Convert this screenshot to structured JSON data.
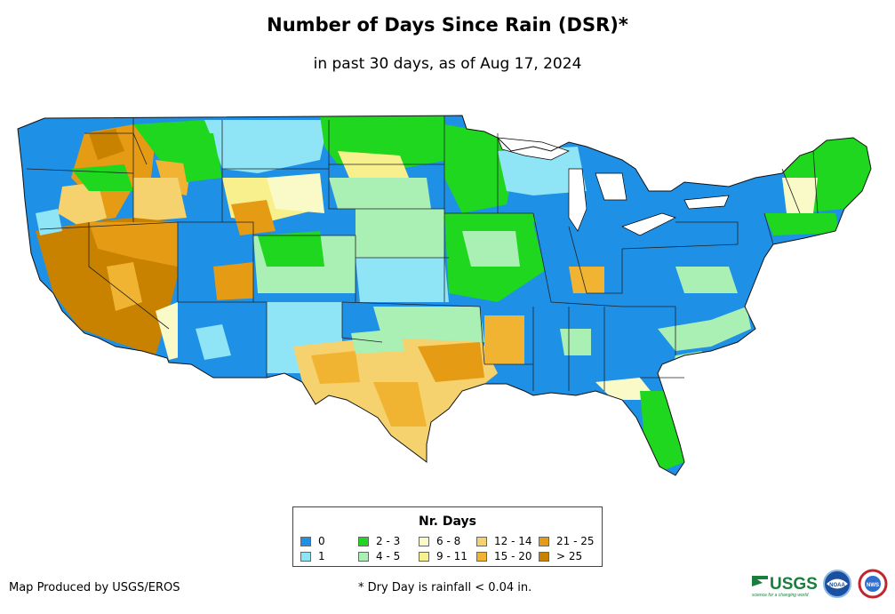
{
  "title": "Number of Days Since Rain (DSR)*",
  "subtitle": "in past 30 days, as of Aug 17, 2024",
  "legend": {
    "title": "Nr. Days",
    "items": [
      {
        "label": "0",
        "color": "#1e90e6"
      },
      {
        "label": "1",
        "color": "#8fe4f5"
      },
      {
        "label": "2 - 3",
        "color": "#1ed71e"
      },
      {
        "label": "4 - 5",
        "color": "#aaf0b4"
      },
      {
        "label": "6 - 8",
        "color": "#fafac8"
      },
      {
        "label": "9 - 11",
        "color": "#f8f08c"
      },
      {
        "label": "12 - 14",
        "color": "#f5d26e"
      },
      {
        "label": "15 - 20",
        "color": "#f0b432"
      },
      {
        "label": "21 - 25",
        "color": "#e69b14"
      },
      {
        "label": "> 25",
        "color": "#c88200"
      }
    ]
  },
  "footer": {
    "credit": "Map Produced by USGS/EROS",
    "note": "* Dry Day is rainfall < 0.04 in."
  },
  "logos": {
    "usgs_text": "USGS",
    "usgs_tagline": "science for a changing world",
    "noaa_text": "NOAA",
    "nws_text": "NWS"
  }
}
